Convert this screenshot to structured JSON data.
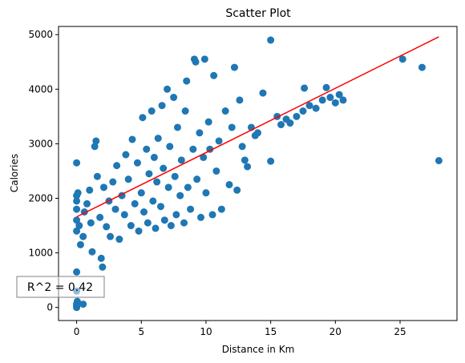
{
  "chart_data": {
    "type": "scatter",
    "title": "Scatter Plot",
    "xlabel": "Distance in Km",
    "ylabel": "Calories",
    "xlim": [
      -1.4,
      29.4
    ],
    "ylim": [
      -240,
      5150
    ],
    "xticks": [
      0,
      5,
      10,
      15,
      20,
      25
    ],
    "yticks": [
      0,
      1000,
      2000,
      3000,
      4000,
      5000
    ],
    "grid": false,
    "marker_color": "#1f77b4",
    "fit_color": "#ff0000",
    "annotation": "R^2 = 0.42",
    "fit_line": {
      "x": [
        0,
        28
      ],
      "y": [
        1660,
        4960
      ]
    },
    "points": [
      [
        0.0,
        0
      ],
      [
        0.0,
        30
      ],
      [
        0.0,
        60
      ],
      [
        0.05,
        110
      ],
      [
        0.5,
        60
      ],
      [
        0.0,
        300
      ],
      [
        0.0,
        650
      ],
      [
        0.0,
        2650
      ],
      [
        0.0,
        1800
      ],
      [
        0.0,
        1950
      ],
      [
        0.0,
        2050
      ],
      [
        0.0,
        1400
      ],
      [
        0.0,
        1600
      ],
      [
        0.1,
        2100
      ],
      [
        0.2,
        1500
      ],
      [
        0.3,
        1150
      ],
      [
        0.5,
        1300
      ],
      [
        0.6,
        1750
      ],
      [
        0.8,
        1900
      ],
      [
        1.0,
        2150
      ],
      [
        1.1,
        1550
      ],
      [
        1.2,
        1020
      ],
      [
        1.4,
        2950
      ],
      [
        1.5,
        3050
      ],
      [
        1.6,
        2400
      ],
      [
        1.8,
        1650
      ],
      [
        1.9,
        900
      ],
      [
        2.0,
        740
      ],
      [
        2.1,
        2200
      ],
      [
        2.3,
        1480
      ],
      [
        2.5,
        1950
      ],
      [
        2.6,
        1300
      ],
      [
        2.8,
        2300
      ],
      [
        3.0,
        1800
      ],
      [
        3.1,
        2600
      ],
      [
        3.3,
        1250
      ],
      [
        3.5,
        2050
      ],
      [
        3.7,
        1700
      ],
      [
        3.8,
        2800
      ],
      [
        4.0,
        2350
      ],
      [
        4.2,
        1500
      ],
      [
        4.3,
        3080
      ],
      [
        4.5,
        1900
      ],
      [
        4.7,
        2650
      ],
      [
        4.8,
        1400
      ],
      [
        5.0,
        2100
      ],
      [
        5.1,
        3480
      ],
      [
        5.2,
        1750
      ],
      [
        5.4,
        2900
      ],
      [
        5.5,
        1550
      ],
      [
        5.6,
        2450
      ],
      [
        5.8,
        3600
      ],
      [
        5.9,
        1950
      ],
      [
        6.0,
        2750
      ],
      [
        6.1,
        1450
      ],
      [
        6.2,
        2300
      ],
      [
        6.3,
        3100
      ],
      [
        6.5,
        1850
      ],
      [
        6.6,
        3700
      ],
      [
        6.7,
        2550
      ],
      [
        6.8,
        1600
      ],
      [
        7.0,
        4000
      ],
      [
        7.1,
        2200
      ],
      [
        7.2,
        2950
      ],
      [
        7.3,
        1500
      ],
      [
        7.5,
        3850
      ],
      [
        7.6,
        2400
      ],
      [
        7.7,
        1700
      ],
      [
        7.8,
        3300
      ],
      [
        8.0,
        2050
      ],
      [
        8.1,
        2700
      ],
      [
        8.3,
        1550
      ],
      [
        8.4,
        3600
      ],
      [
        8.5,
        4150
      ],
      [
        8.6,
        2200
      ],
      [
        8.8,
        1800
      ],
      [
        9.0,
        2900
      ],
      [
        9.1,
        4550
      ],
      [
        9.2,
        4500
      ],
      [
        9.3,
        2350
      ],
      [
        9.5,
        3200
      ],
      [
        9.6,
        1650
      ],
      [
        9.8,
        2750
      ],
      [
        9.9,
        4550
      ],
      [
        10.0,
        2100
      ],
      [
        10.2,
        3400
      ],
      [
        10.3,
        2900
      ],
      [
        10.5,
        1700
      ],
      [
        10.6,
        4250
      ],
      [
        10.8,
        2500
      ],
      [
        11.0,
        3050
      ],
      [
        11.2,
        1800
      ],
      [
        11.5,
        3600
      ],
      [
        11.8,
        2250
      ],
      [
        12.0,
        3300
      ],
      [
        12.2,
        4400
      ],
      [
        12.4,
        2150
      ],
      [
        12.6,
        3800
      ],
      [
        12.8,
        2950
      ],
      [
        13.0,
        2700
      ],
      [
        13.2,
        2580
      ],
      [
        13.5,
        3300
      ],
      [
        13.8,
        3150
      ],
      [
        14.0,
        3200
      ],
      [
        14.4,
        3930
      ],
      [
        15.0,
        4900
      ],
      [
        15.0,
        2680
      ],
      [
        15.5,
        3500
      ],
      [
        15.8,
        3350
      ],
      [
        16.2,
        3450
      ],
      [
        16.5,
        3380
      ],
      [
        17.0,
        3500
      ],
      [
        17.5,
        3600
      ],
      [
        17.6,
        4020
      ],
      [
        18.0,
        3700
      ],
      [
        18.5,
        3650
      ],
      [
        19.0,
        3800
      ],
      [
        19.3,
        4030
      ],
      [
        19.6,
        3850
      ],
      [
        20.0,
        3750
      ],
      [
        20.3,
        3900
      ],
      [
        20.6,
        3800
      ],
      [
        25.2,
        4550
      ],
      [
        26.7,
        4400
      ],
      [
        28.0,
        2690
      ]
    ]
  }
}
